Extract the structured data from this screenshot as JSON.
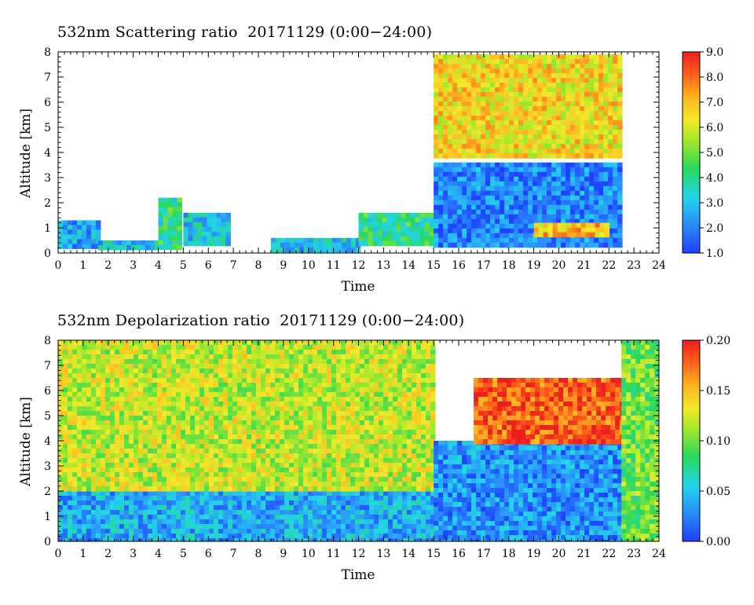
{
  "chart_data": [
    {
      "type": "heatmap",
      "title": "532nm Scattering ratio  20171129 (0:00−24:00)",
      "xlabel": "Time",
      "ylabel": "Altitude [km]",
      "xlim": [
        0,
        24
      ],
      "ylim": [
        0,
        8
      ],
      "x_ticks": [
        "0",
        "1",
        "2",
        "3",
        "4",
        "5",
        "6",
        "7",
        "8",
        "9",
        "10",
        "11",
        "12",
        "13",
        "14",
        "15",
        "16",
        "17",
        "18",
        "19",
        "20",
        "21",
        "22",
        "23",
        "24"
      ],
      "y_ticks": [
        "0",
        "1",
        "2",
        "3",
        "4",
        "5",
        "6",
        "7",
        "8"
      ],
      "colorbar": {
        "range": [
          1.0,
          9.0
        ],
        "ticks": [
          "1.0",
          "2.0",
          "3.0",
          "4.0",
          "5.0",
          "6.0",
          "7.0",
          "8.0",
          "9.0"
        ]
      },
      "features": [
        {
          "x": [
            0,
            1.6
          ],
          "y": [
            0.2,
            1.3
          ],
          "level": 2.5
        },
        {
          "x": [
            1.6,
            4.0
          ],
          "y": [
            0.2,
            0.5
          ],
          "level": 3.0
        },
        {
          "x": [
            4.0,
            4.8
          ],
          "y": [
            0.3,
            2.2
          ],
          "level": 4.0
        },
        {
          "x": [
            5.0,
            6.8
          ],
          "y": [
            0.3,
            1.6
          ],
          "level": 3.0
        },
        {
          "x": [
            8.5,
            12.0
          ],
          "y": [
            0.2,
            0.6
          ],
          "level": 3.0
        },
        {
          "x": [
            12.0,
            15.0
          ],
          "y": [
            0.3,
            1.6
          ],
          "level": 4.0
        },
        {
          "x": [
            15.0,
            22.5
          ],
          "y": [
            0.4,
            3.6
          ],
          "level": 2.0
        },
        {
          "x": [
            15.0,
            22.5
          ],
          "y": [
            3.8,
            7.9
          ],
          "level": 6.5
        },
        {
          "x": [
            19.0,
            22.0
          ],
          "y": [
            0.8,
            1.2
          ],
          "level": 7.0
        }
      ]
    },
    {
      "type": "heatmap",
      "title": "532nm Depolarization ratio  20171129 (0:00−24:00)",
      "xlabel": "Time",
      "ylabel": "Altitude [km]",
      "xlim": [
        0,
        24
      ],
      "ylim": [
        0,
        8
      ],
      "x_ticks": [
        "0",
        "1",
        "2",
        "3",
        "4",
        "5",
        "6",
        "7",
        "8",
        "9",
        "10",
        "11",
        "12",
        "13",
        "14",
        "15",
        "16",
        "17",
        "18",
        "19",
        "20",
        "21",
        "22",
        "23",
        "24"
      ],
      "y_ticks": [
        "0",
        "1",
        "2",
        "3",
        "4",
        "5",
        "6",
        "7",
        "8"
      ],
      "colorbar": {
        "range": [
          0.0,
          0.2
        ],
        "ticks": [
          "0.00",
          "0.05",
          "0.10",
          "0.15",
          "0.20"
        ]
      },
      "features": [
        {
          "x": [
            0,
            15.0
          ],
          "y": [
            0.0,
            2.0
          ],
          "level": 0.04
        },
        {
          "x": [
            0,
            15.0
          ],
          "y": [
            2.0,
            8.0
          ],
          "level": 0.12
        },
        {
          "x": [
            15.0,
            24.0
          ],
          "y": [
            0.0,
            4.0
          ],
          "level": 0.03
        },
        {
          "x": [
            16.6,
            22.5
          ],
          "y": [
            4.0,
            6.5
          ],
          "level": 0.18
        },
        {
          "x": [
            22.5,
            24.0
          ],
          "y": [
            0.0,
            8.0
          ],
          "level": 0.1
        }
      ]
    }
  ]
}
